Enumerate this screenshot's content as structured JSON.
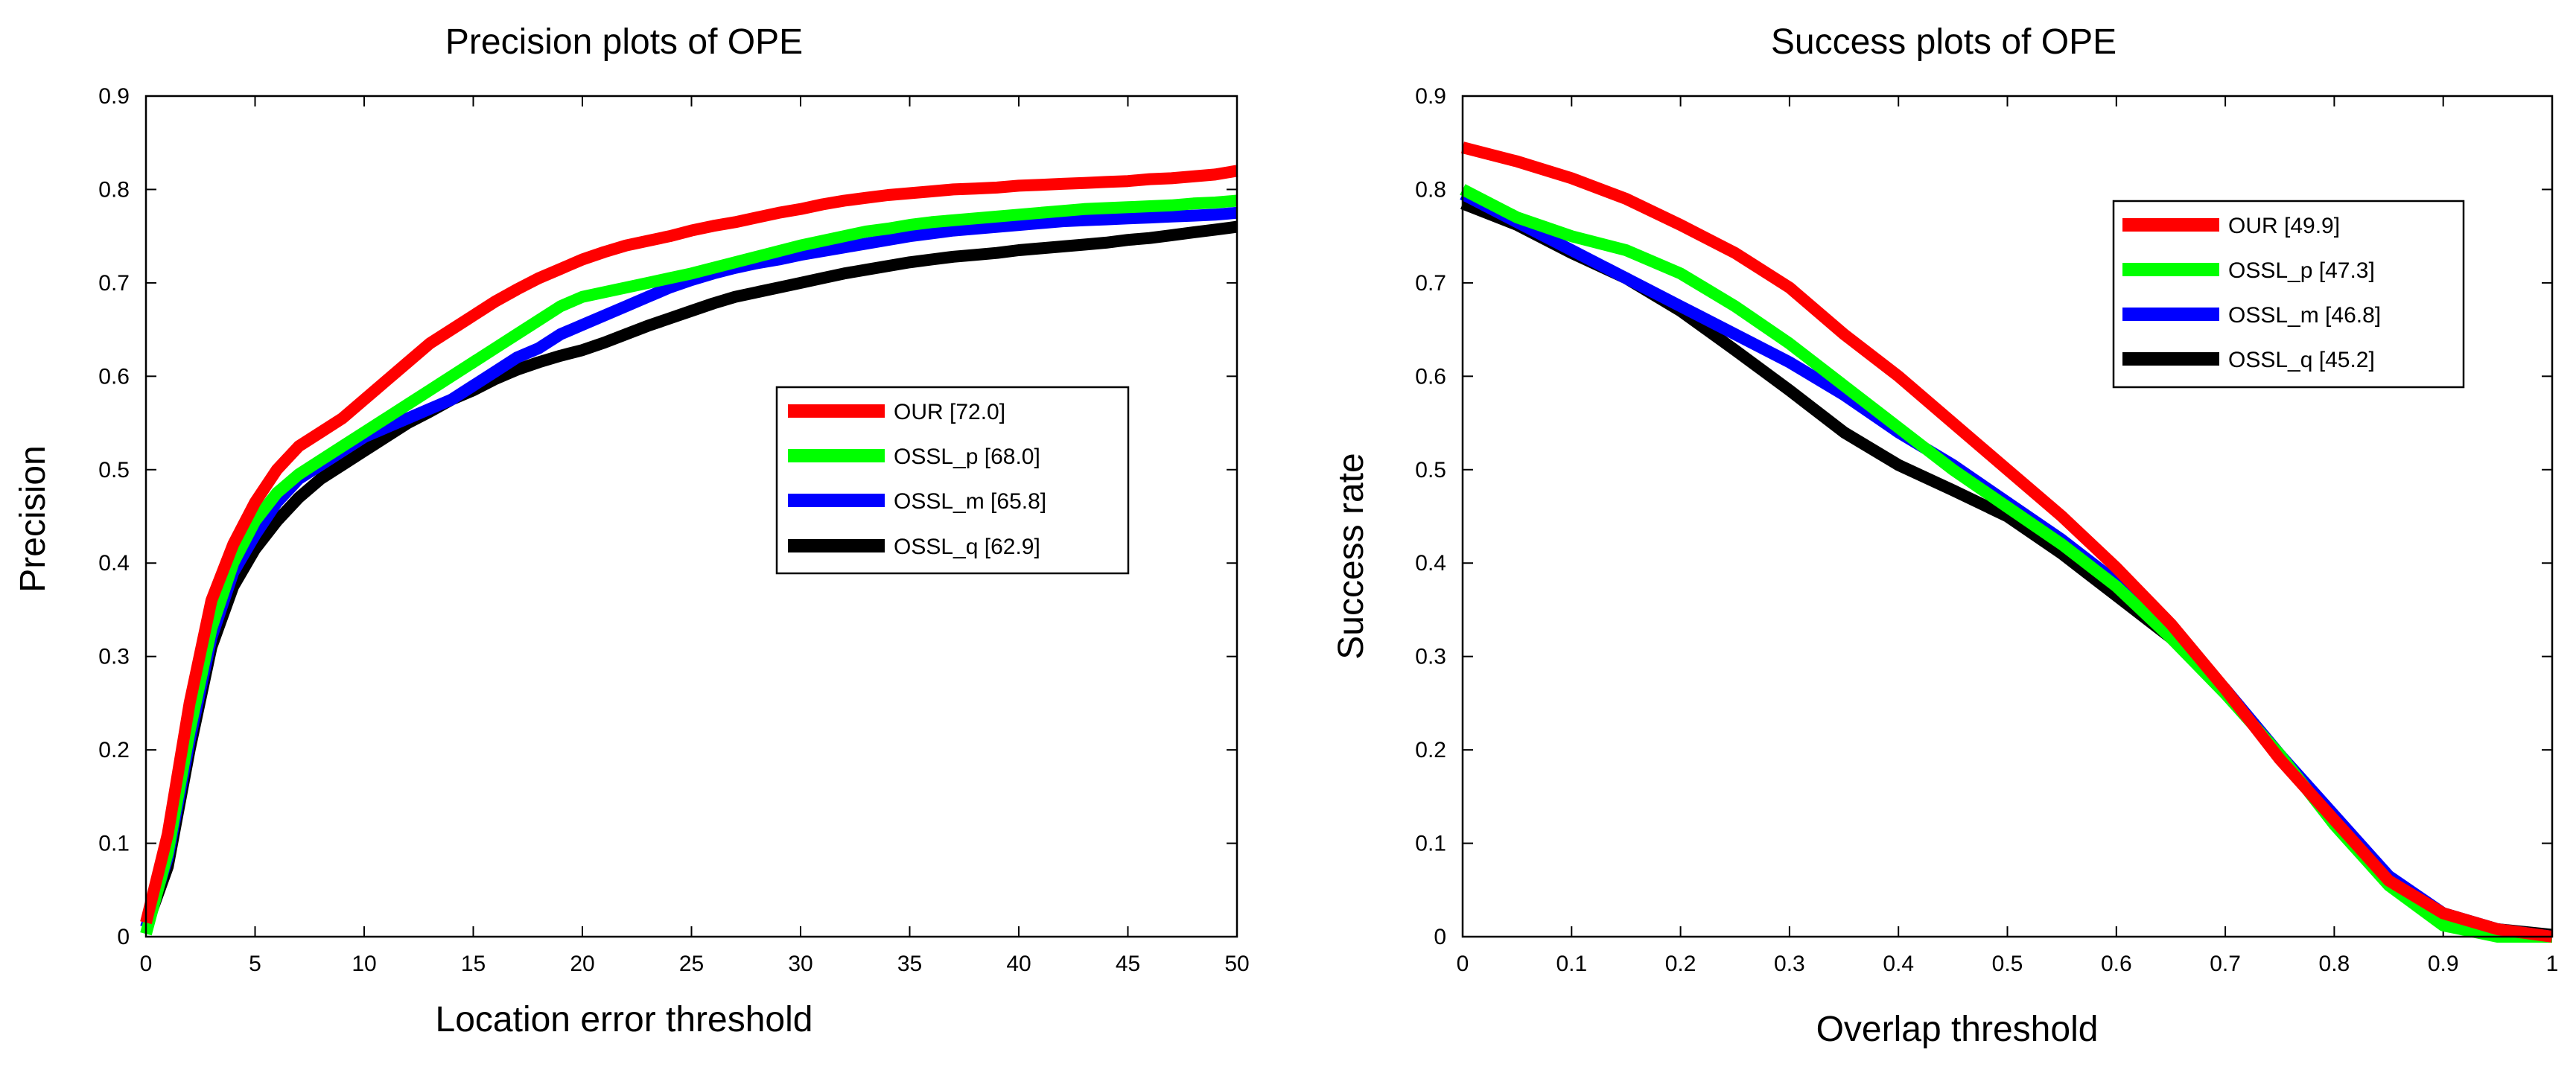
{
  "chart_data": [
    {
      "type": "line",
      "title": "Precision plots of OPE",
      "xlabel": "Location error threshold",
      "ylabel": "Precision",
      "xlim": [
        0,
        50
      ],
      "ylim": [
        0,
        0.9
      ],
      "xticks": [
        0,
        5,
        10,
        15,
        20,
        25,
        30,
        35,
        40,
        45,
        50
      ],
      "yticks": [
        0,
        0.1,
        0.2,
        0.3,
        0.4,
        0.5,
        0.6,
        0.7,
        0.8,
        0.9
      ],
      "legend_position": "center-right",
      "x": [
        0,
        1,
        2,
        3,
        4,
        5,
        6,
        7,
        8,
        9,
        10,
        11,
        12,
        13,
        14,
        15,
        16,
        17,
        18,
        19,
        20,
        21,
        22,
        23,
        24,
        25,
        26,
        27,
        28,
        29,
        30,
        31,
        32,
        33,
        34,
        35,
        36,
        37,
        38,
        39,
        40,
        41,
        42,
        43,
        44,
        45,
        46,
        47,
        48,
        49,
        50
      ],
      "series": [
        {
          "name": "OUR [72.0]",
          "color": "#ff0000",
          "values": [
            0.015,
            0.11,
            0.25,
            0.36,
            0.42,
            0.465,
            0.5,
            0.525,
            0.54,
            0.555,
            0.575,
            0.595,
            0.615,
            0.635,
            0.65,
            0.665,
            0.68,
            0.693,
            0.705,
            0.715,
            0.725,
            0.733,
            0.74,
            0.745,
            0.75,
            0.756,
            0.761,
            0.765,
            0.77,
            0.775,
            0.779,
            0.784,
            0.788,
            0.791,
            0.794,
            0.796,
            0.798,
            0.8,
            0.801,
            0.802,
            0.804,
            0.805,
            0.806,
            0.807,
            0.808,
            0.809,
            0.811,
            0.812,
            0.814,
            0.816,
            0.82
          ]
        },
        {
          "name": "OSSL_p [68.0]",
          "color": "#00ff00",
          "values": [
            0.003,
            0.09,
            0.22,
            0.33,
            0.4,
            0.445,
            0.475,
            0.495,
            0.51,
            0.525,
            0.54,
            0.555,
            0.57,
            0.585,
            0.6,
            0.615,
            0.63,
            0.645,
            0.66,
            0.675,
            0.685,
            0.69,
            0.695,
            0.7,
            0.705,
            0.71,
            0.716,
            0.722,
            0.728,
            0.734,
            0.74,
            0.745,
            0.75,
            0.755,
            0.758,
            0.762,
            0.765,
            0.767,
            0.769,
            0.771,
            0.773,
            0.775,
            0.777,
            0.779,
            0.78,
            0.781,
            0.782,
            0.783,
            0.785,
            0.786,
            0.788
          ]
        },
        {
          "name": "OSSL_m [65.8]",
          "color": "#0000ff",
          "values": [
            0.01,
            0.085,
            0.21,
            0.32,
            0.39,
            0.43,
            0.465,
            0.49,
            0.505,
            0.52,
            0.535,
            0.545,
            0.555,
            0.565,
            0.575,
            0.59,
            0.605,
            0.62,
            0.63,
            0.645,
            0.655,
            0.665,
            0.675,
            0.685,
            0.695,
            0.703,
            0.71,
            0.716,
            0.721,
            0.725,
            0.73,
            0.734,
            0.738,
            0.742,
            0.746,
            0.75,
            0.753,
            0.756,
            0.758,
            0.76,
            0.762,
            0.764,
            0.766,
            0.767,
            0.768,
            0.769,
            0.77,
            0.771,
            0.772,
            0.773,
            0.775
          ]
        },
        {
          "name": "OSSL_q [62.9]",
          "color": "#000000",
          "values": [
            0.01,
            0.075,
            0.2,
            0.31,
            0.375,
            0.415,
            0.445,
            0.47,
            0.49,
            0.505,
            0.52,
            0.535,
            0.55,
            0.562,
            0.575,
            0.585,
            0.597,
            0.607,
            0.615,
            0.622,
            0.628,
            0.636,
            0.645,
            0.654,
            0.662,
            0.67,
            0.678,
            0.685,
            0.69,
            0.695,
            0.7,
            0.705,
            0.71,
            0.714,
            0.718,
            0.722,
            0.725,
            0.728,
            0.73,
            0.732,
            0.735,
            0.737,
            0.739,
            0.741,
            0.743,
            0.746,
            0.748,
            0.751,
            0.754,
            0.757,
            0.76
          ]
        }
      ]
    },
    {
      "type": "line",
      "title": "Success plots of OPE",
      "xlabel": "Overlap threshold",
      "ylabel": "Success rate",
      "xlim": [
        0,
        1
      ],
      "ylim": [
        0,
        0.9
      ],
      "xticks": [
        0,
        0.1,
        0.2,
        0.3,
        0.4,
        0.5,
        0.6,
        0.7,
        0.8,
        0.9,
        1
      ],
      "yticks": [
        0,
        0.1,
        0.2,
        0.3,
        0.4,
        0.5,
        0.6,
        0.7,
        0.8,
        0.9
      ],
      "legend_position": "top-right",
      "x": [
        0,
        0.05,
        0.1,
        0.15,
        0.2,
        0.25,
        0.3,
        0.35,
        0.4,
        0.45,
        0.5,
        0.55,
        0.6,
        0.65,
        0.7,
        0.75,
        0.8,
        0.85,
        0.9,
        0.95,
        1
      ],
      "series": [
        {
          "name": "OUR [49.9]",
          "color": "#ff0000",
          "values": [
            0.845,
            0.83,
            0.812,
            0.79,
            0.762,
            0.732,
            0.695,
            0.645,
            0.6,
            0.55,
            0.5,
            0.45,
            0.395,
            0.335,
            0.265,
            0.19,
            0.125,
            0.06,
            0.025,
            0.008,
            0.0
          ]
        },
        {
          "name": "OSSL_p [47.3]",
          "color": "#00ff00",
          "values": [
            0.8,
            0.77,
            0.75,
            0.735,
            0.71,
            0.675,
            0.635,
            0.59,
            0.545,
            0.5,
            0.46,
            0.42,
            0.375,
            0.32,
            0.26,
            0.195,
            0.12,
            0.055,
            0.012,
            0.0,
            0.0
          ]
        },
        {
          "name": "OSSL_m [46.8]",
          "color": "#0000ff",
          "values": [
            0.795,
            0.765,
            0.735,
            0.705,
            0.675,
            0.645,
            0.615,
            0.58,
            0.54,
            0.505,
            0.465,
            0.425,
            0.38,
            0.325,
            0.265,
            0.195,
            0.13,
            0.065,
            0.025,
            0.008,
            0.0
          ]
        },
        {
          "name": "OSSL_q [45.2]",
          "color": "#000000",
          "values": [
            0.785,
            0.762,
            0.732,
            0.705,
            0.67,
            0.628,
            0.585,
            0.54,
            0.505,
            0.478,
            0.45,
            0.41,
            0.365,
            0.32,
            0.265,
            0.195,
            0.125,
            0.062,
            0.025,
            0.008,
            0.002
          ]
        }
      ]
    }
  ]
}
